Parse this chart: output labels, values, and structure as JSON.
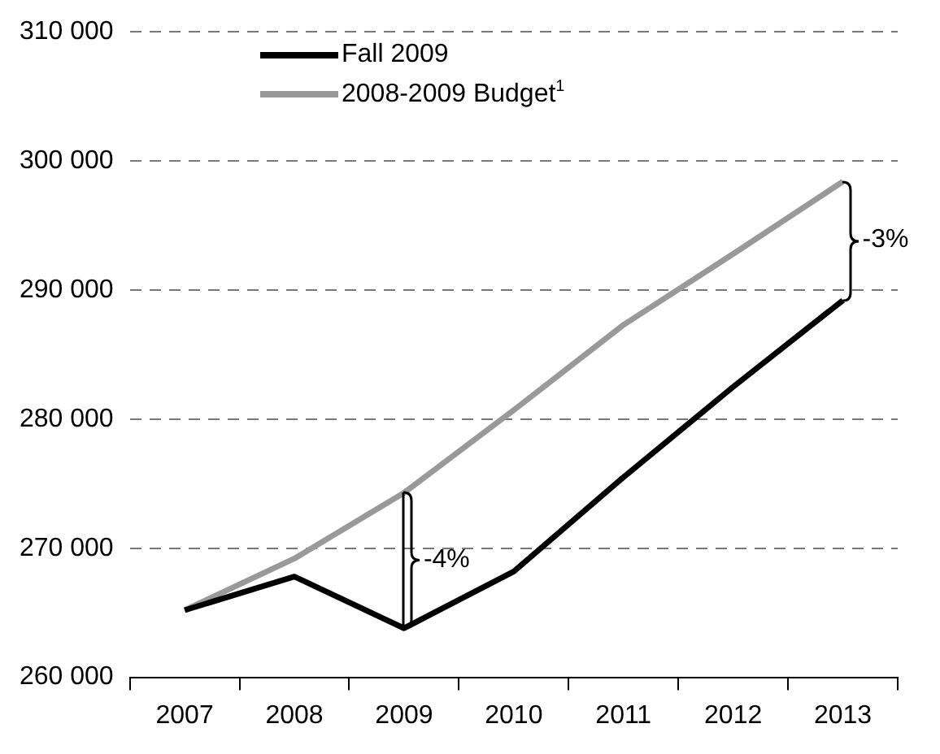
{
  "chart_data": {
    "type": "line",
    "categories": [
      "2007",
      "2008",
      "2009",
      "2010",
      "2011",
      "2012",
      "2013"
    ],
    "series": [
      {
        "name": "Fall 2009",
        "color": "#000000",
        "values": [
          265200,
          267800,
          263800,
          268200,
          275500,
          282500,
          289200
        ]
      },
      {
        "name": "2008-2009 Budget$^{1}$",
        "color": "#999999",
        "values": [
          265200,
          269200,
          274300,
          280700,
          287300,
          292800,
          298400
        ]
      }
    ],
    "ylim": [
      260000,
      310000
    ],
    "yticks": [
      {
        "value": 260000,
        "label": "260 000"
      },
      {
        "value": 270000,
        "label": "270 000"
      },
      {
        "value": 280000,
        "label": "280 000"
      },
      {
        "value": 290000,
        "label": "290 000"
      },
      {
        "value": 300000,
        "label": "300 000"
      },
      {
        "value": 310000,
        "label": "310 000"
      }
    ],
    "annotations": [
      "-4%",
      "-3%"
    ],
    "grid": "y",
    "legend": "top left",
    "marker": "none",
    "line_style": "solid"
  }
}
